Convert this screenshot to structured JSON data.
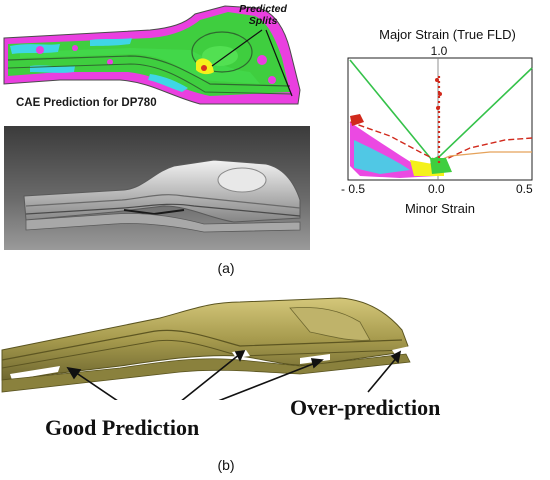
{
  "panel_a": {
    "cae_label": "CAE Prediction for DP780",
    "splits_label_line1": "Predicted",
    "splits_label_line2": "Splits",
    "caption": "(a)"
  },
  "fld": {
    "title": "Major Strain (True FLD)",
    "y_max_label": "1.0",
    "x_ticks": [
      "- 0.5",
      "0.0",
      "0.5"
    ],
    "x_label": "Minor Strain"
  },
  "panel_b": {
    "good_prediction": "Good Prediction",
    "over_prediction": "Over-prediction",
    "caption": "(b)"
  },
  "colors": {
    "cae_green": "#3fce3f",
    "cae_magenta": "#ea3fe0",
    "cae_cyan": "#3fd6e6",
    "cae_yellow": "#f4f11b",
    "part_olive": "#a79b4e",
    "fld_green_line": "#35c24a",
    "fld_red_line": "#d1291c",
    "fld_orange_line": "#e5a25a"
  }
}
